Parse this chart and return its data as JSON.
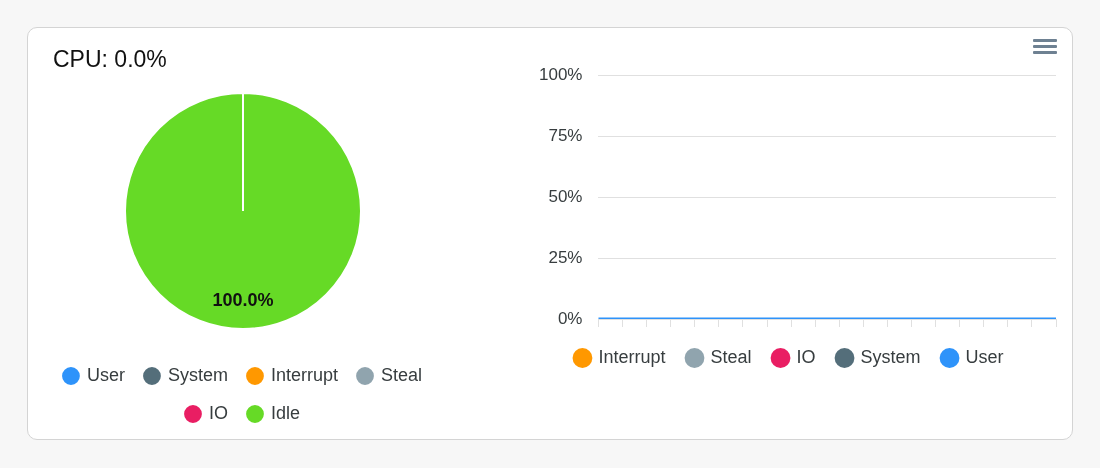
{
  "chart_data": [
    {
      "type": "pie",
      "title": "CPU: 0.0%",
      "categories": [
        "User",
        "System",
        "Interrupt",
        "Steal",
        "IO",
        "Idle"
      ],
      "values": [
        0,
        0,
        0,
        0,
        0,
        100
      ],
      "colors": [
        "#2e93fa",
        "#546e7a",
        "#ff9800",
        "#90a4ae",
        "#e91e63",
        "#66da26"
      ],
      "value_labels": [
        null,
        null,
        null,
        null,
        null,
        "100.0%"
      ],
      "legend": "bottom"
    },
    {
      "type": "line",
      "categories": [
        null,
        null,
        null,
        null,
        null,
        null,
        null,
        null,
        null,
        null,
        null,
        null,
        null,
        null,
        null,
        null,
        null,
        null,
        null,
        null
      ],
      "series": [
        {
          "name": "Interrupt",
          "color": "#ff9800",
          "values": [
            null,
            null,
            null,
            null,
            null,
            null,
            null,
            null,
            null,
            null,
            null,
            null,
            null,
            null,
            null,
            null,
            null,
            null,
            null,
            null
          ]
        },
        {
          "name": "Steal",
          "color": "#90a4ae",
          "values": [
            null,
            null,
            null,
            null,
            null,
            null,
            null,
            null,
            null,
            null,
            null,
            null,
            null,
            null,
            null,
            null,
            null,
            null,
            null,
            null
          ]
        },
        {
          "name": "IO",
          "color": "#e91e63",
          "values": [
            null,
            null,
            null,
            null,
            null,
            null,
            null,
            null,
            null,
            null,
            null,
            null,
            null,
            null,
            null,
            null,
            null,
            null,
            null,
            null
          ]
        },
        {
          "name": "System",
          "color": "#546e7a",
          "values": [
            null,
            null,
            null,
            null,
            null,
            null,
            null,
            null,
            null,
            null,
            null,
            null,
            null,
            null,
            null,
            null,
            null,
            null,
            null,
            null
          ]
        },
        {
          "name": "User",
          "color": "#2e93fa",
          "values": [
            0,
            0,
            0,
            0,
            0,
            0,
            0,
            0,
            0,
            0,
            0,
            0,
            0,
            0,
            0,
            0,
            0,
            0,
            0,
            0
          ]
        }
      ],
      "ylim": [
        0,
        100
      ],
      "yticks": [
        {
          "value": 0,
          "label": "0%"
        },
        {
          "value": 25,
          "label": "25%"
        },
        {
          "value": 50,
          "label": "50%"
        },
        {
          "value": 75,
          "label": "75%"
        },
        {
          "value": 100,
          "label": "100%"
        }
      ],
      "grid": "y",
      "legend": "bottom",
      "tick_labels": "y"
    }
  ]
}
